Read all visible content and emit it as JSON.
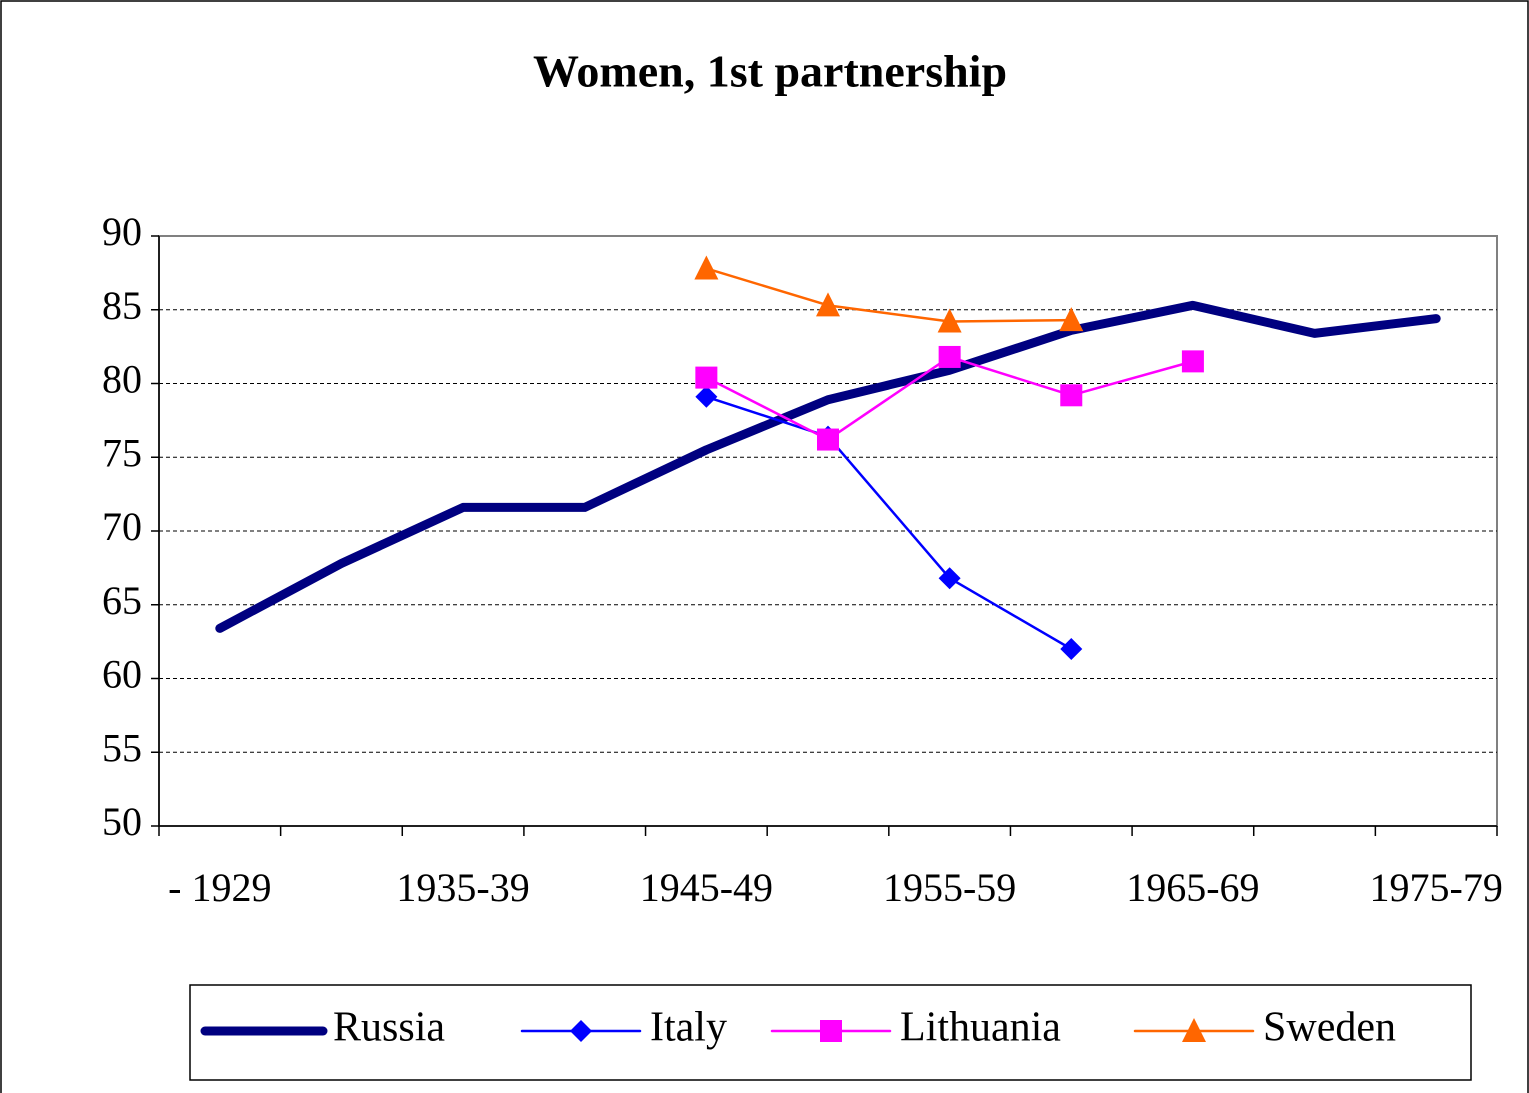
{
  "chart_data": {
    "type": "line",
    "title": "Women, 1st partnership",
    "categories": [
      "- 1929",
      null,
      "1935-39",
      null,
      "1945-49",
      null,
      "1955-59",
      null,
      "1965-69",
      null,
      "1975-79"
    ],
    "series": [
      {
        "name": "Russia",
        "color": "#000080",
        "marker": "none",
        "values": [
          63.4,
          67.8,
          71.6,
          71.6,
          75.5,
          78.9,
          80.9,
          83.6,
          85.3,
          83.4,
          84.4
        ]
      },
      {
        "name": "Italy",
        "color": "#0000ff",
        "marker": "diamond",
        "values": [
          null,
          null,
          null,
          null,
          79.1,
          76.4,
          66.8,
          62.0,
          null,
          null,
          null
        ]
      },
      {
        "name": "Lithuania",
        "color": "#ff00ff",
        "marker": "square",
        "values": [
          null,
          null,
          null,
          null,
          80.4,
          76.2,
          81.8,
          79.2,
          81.5,
          null,
          null
        ]
      },
      {
        "name": "Sweden",
        "color": "#ff6600",
        "marker": "triangle",
        "values": [
          null,
          null,
          null,
          null,
          87.8,
          85.3,
          84.2,
          84.3,
          null,
          null,
          null
        ]
      }
    ],
    "ylim": [
      50,
      90
    ],
    "yticks": [
      50,
      55,
      60,
      65,
      70,
      75,
      80,
      85,
      90
    ],
    "grid": true,
    "legend": "bottom"
  }
}
